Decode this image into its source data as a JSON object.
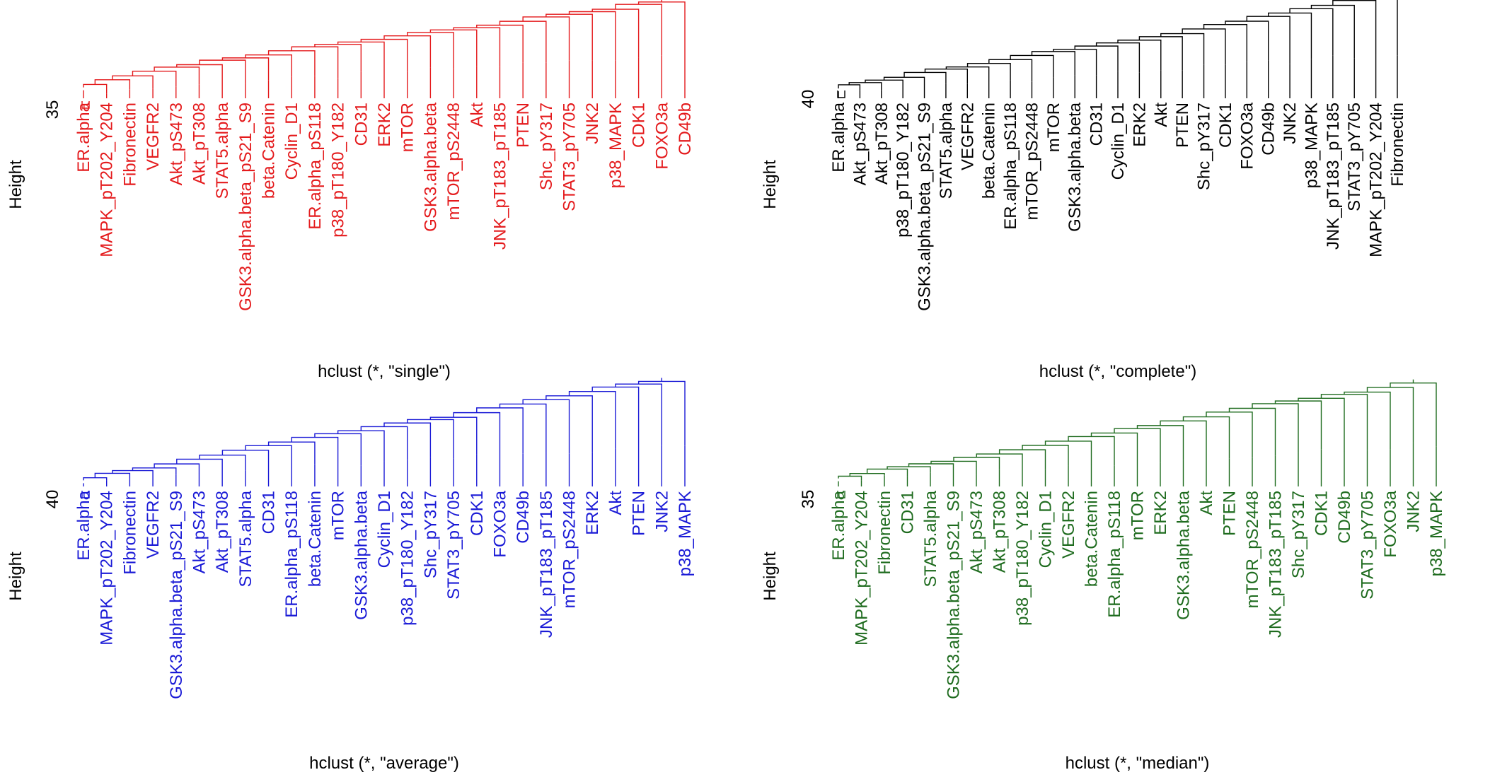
{
  "figure": {
    "background": "#ffffff"
  },
  "chart_data": [
    {
      "type": "dendrogram",
      "title": "",
      "xlabel": "hclust (*, \"single\")",
      "ylabel": "Height",
      "yticks": [
        "35"
      ],
      "color": "#e41a1c",
      "leaves": [
        "ER.alpha",
        "MAPK_pT202_Y204",
        "Fibronectin",
        "VEGFR2",
        "Akt_pS473",
        "Akt_pT308",
        "STAT5.alpha",
        "GSK3.alpha.beta_pS21_S9",
        "beta.Catenin",
        "Cyclin_D1",
        "ER.alpha_pS118",
        "p38_pT180_Y182",
        "CD31",
        "ERK2",
        "mTOR",
        "GSK3.alpha.beta",
        "mTOR_pS2448",
        "Akt",
        "JNK_pT183_pT185",
        "PTEN",
        "Shc_pY317",
        "STAT3_pY705",
        "JNK2",
        "p38_MAPK",
        "CDK1",
        "FOXO3a",
        "CD49b"
      ]
    },
    {
      "type": "dendrogram",
      "title": "",
      "xlabel": "hclust (*, \"complete\")",
      "ylabel": "Height",
      "yticks": [
        "40"
      ],
      "color": "#000000",
      "leaves": [
        "ER.alpha",
        "Akt_pS473",
        "Akt_pT308",
        "p38_pT180_Y182",
        "GSK3.alpha.beta_pS21_S9",
        "STAT5.alpha",
        "VEGFR2",
        "beta.Catenin",
        "ER.alpha_pS118",
        "mTOR_pS2448",
        "mTOR",
        "GSK3.alpha.beta",
        "CD31",
        "Cyclin_D1",
        "ERK2",
        "Akt",
        "PTEN",
        "Shc_pY317",
        "CDK1",
        "FOXO3a",
        "CD49b",
        "JNK2",
        "p38_MAPK",
        "JNK_pT183_pT185",
        "STAT3_pY705",
        "MAPK_pT202_Y204",
        "Fibronectin"
      ]
    },
    {
      "type": "dendrogram",
      "title": "",
      "xlabel": "hclust (*, \"average\")",
      "ylabel": "Height",
      "yticks": [
        "40"
      ],
      "color": "#1a1ad6",
      "leaves": [
        "ER.alpha",
        "MAPK_pT202_Y204",
        "Fibronectin",
        "VEGFR2",
        "GSK3.alpha.beta_pS21_S9",
        "Akt_pS473",
        "Akt_pT308",
        "STAT5.alpha",
        "CD31",
        "ER.alpha_pS118",
        "beta.Catenin",
        "mTOR",
        "GSK3.alpha.beta",
        "Cyclin_D1",
        "p38_pT180_Y182",
        "Shc_pY317",
        "STAT3_pY705",
        "CDK1",
        "FOXO3a",
        "CD49b",
        "JNK_pT183_pT185",
        "mTOR_pS2448",
        "ERK2",
        "Akt",
        "PTEN",
        "JNK2",
        "p38_MAPK"
      ]
    },
    {
      "type": "dendrogram",
      "title": "",
      "xlabel": "hclust (*, \"median\")",
      "ylabel": "Height",
      "yticks": [
        "35"
      ],
      "color": "#1e6b1e",
      "leaves": [
        "ER.alpha",
        "MAPK_pT202_Y204",
        "Fibronectin",
        "CD31",
        "STAT5.alpha",
        "GSK3.alpha.beta_pS21_S9",
        "Akt_pS473",
        "Akt_pT308",
        "p38_pT180_Y182",
        "Cyclin_D1",
        "VEGFR2",
        "beta.Catenin",
        "ER.alpha_pS118",
        "mTOR",
        "ERK2",
        "GSK3.alpha.beta",
        "Akt",
        "PTEN",
        "mTOR_pS2448",
        "JNK_pT183_pT185",
        "Shc_pY317",
        "CDK1",
        "CD49b",
        "STAT3_pY705",
        "FOXO3a",
        "JNK2",
        "p38_MAPK"
      ]
    }
  ]
}
